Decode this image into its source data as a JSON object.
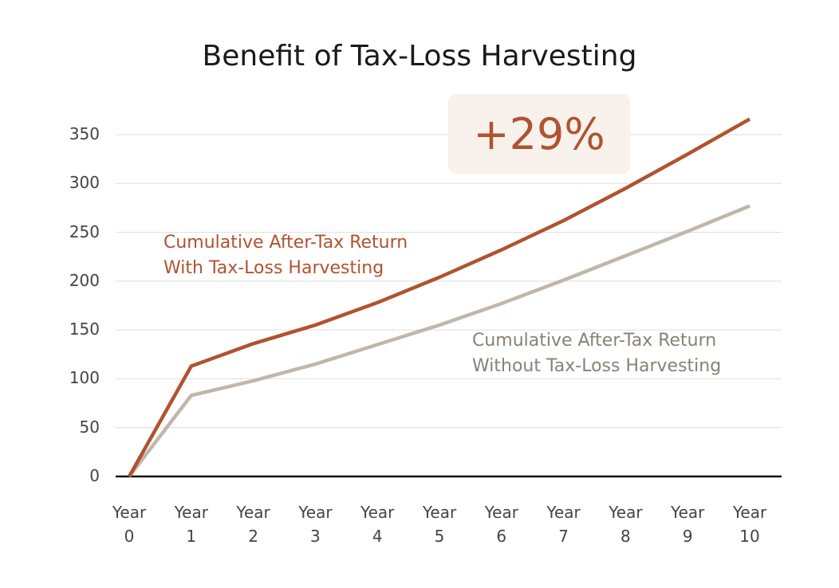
{
  "chart_data": {
    "type": "line",
    "title": "Benefit of Tax-Loss Harvesting",
    "annotation": "+29%",
    "categories": [
      "Year 0",
      "Year 1",
      "Year 2",
      "Year 3",
      "Year 4",
      "Year 5",
      "Year 6",
      "Year 7",
      "Year 8",
      "Year 9",
      "Year 10"
    ],
    "series": [
      {
        "name": "Cumulative After-Tax Return With Tax-Loss Harvesting",
        "color": "#b0532f",
        "values": [
          0,
          113,
          136,
          155,
          178,
          204,
          232,
          262,
          295,
          330,
          366
        ]
      },
      {
        "name": "Cumulative After-Tax Return Without Tax-Loss Harvesting",
        "color": "#c0b7ab",
        "values": [
          0,
          83,
          98,
          115,
          135,
          155,
          177,
          201,
          226,
          251,
          277
        ]
      }
    ],
    "ylim": [
      0,
      350
    ],
    "yticks": [
      0,
      50,
      100,
      150,
      200,
      250,
      300,
      350
    ],
    "grid": true
  }
}
